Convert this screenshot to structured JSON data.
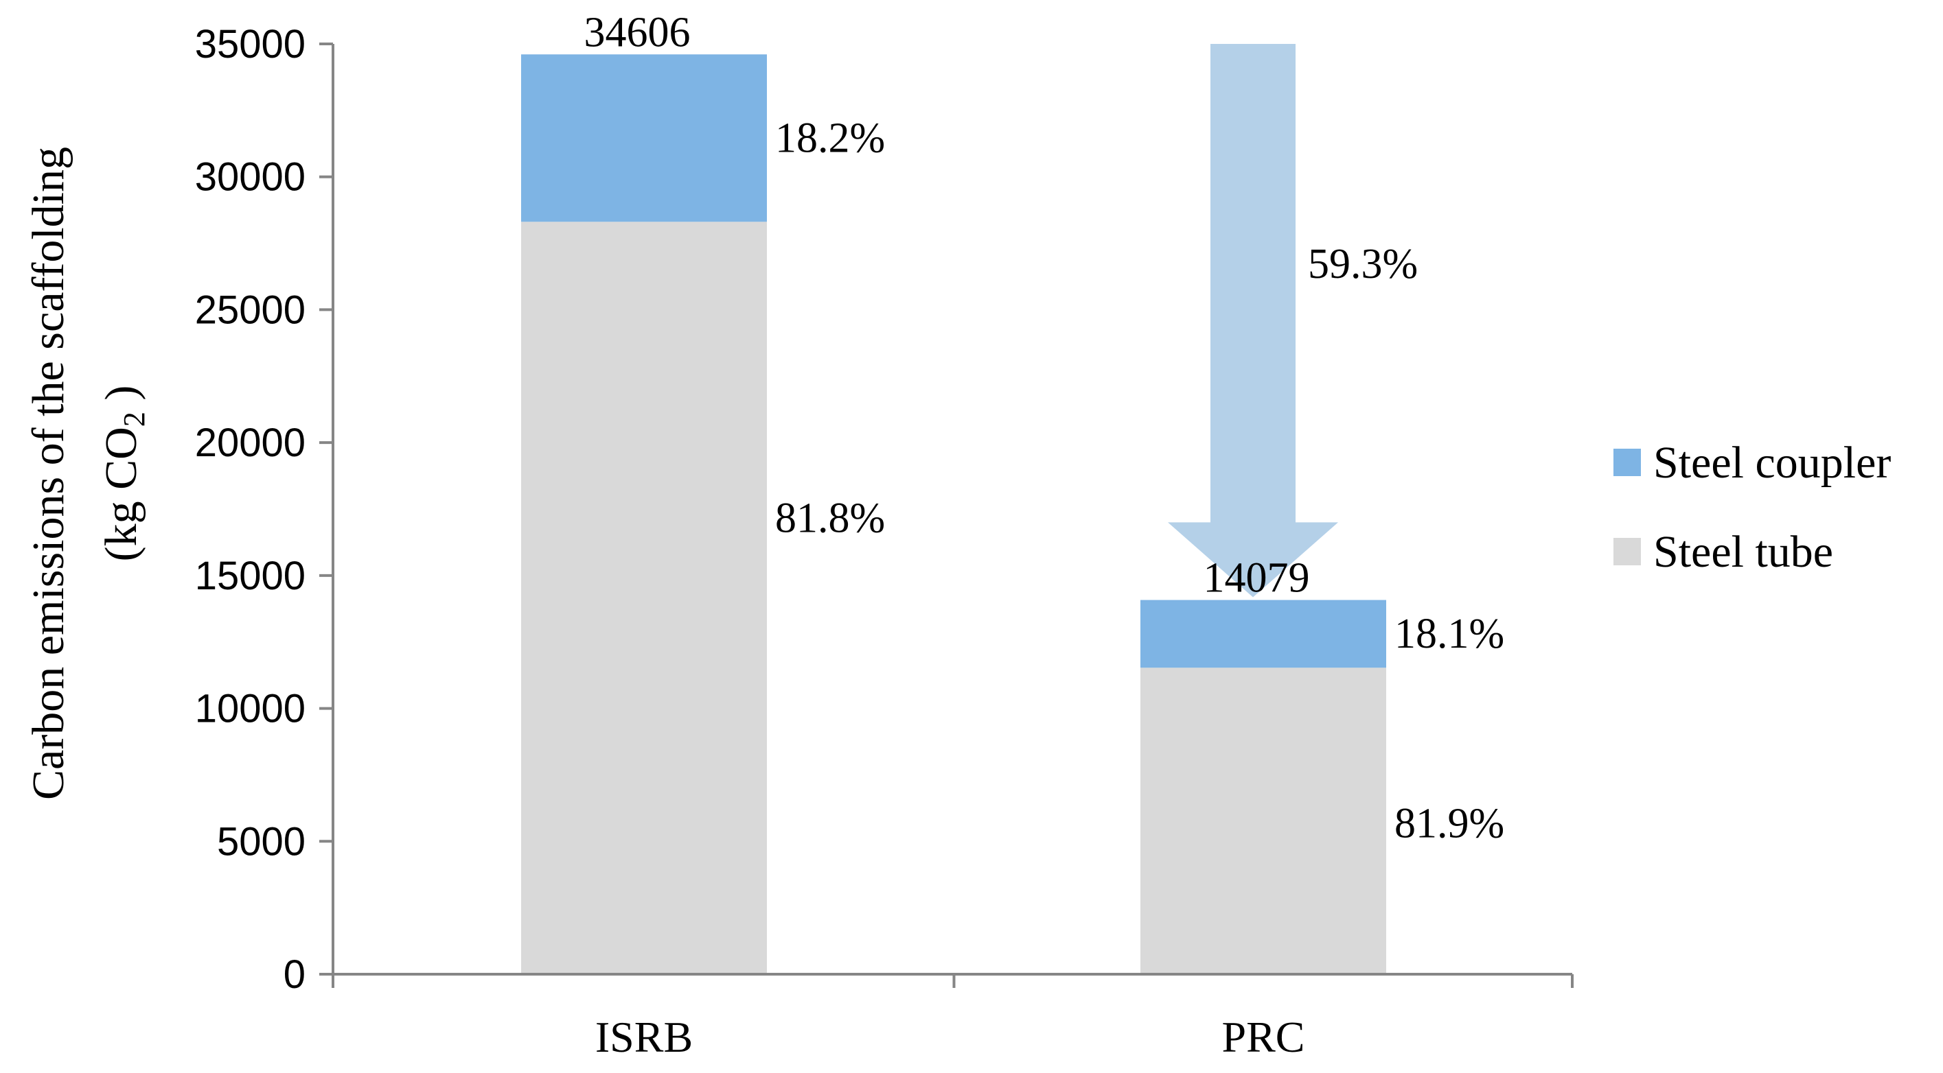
{
  "chart_data": {
    "type": "bar",
    "stacked": true,
    "categories": [
      "ISRB",
      "PRC"
    ],
    "series": [
      {
        "name": "Steel tube",
        "values": [
          28308,
          11531
        ],
        "color": "#d9d9d9"
      },
      {
        "name": "Steel coupler",
        "values": [
          6298,
          2548
        ],
        "color": "#7eb4e4"
      }
    ],
    "totals": [
      {
        "category": "ISRB",
        "label": "34606"
      },
      {
        "category": "PRC",
        "label": "14079"
      }
    ],
    "segment_labels": [
      {
        "category": "ISRB",
        "series": "Steel coupler",
        "label": "18.2%"
      },
      {
        "category": "ISRB",
        "series": "Steel tube",
        "label": "81.8%"
      },
      {
        "category": "PRC",
        "series": "Steel coupler",
        "label": "18.1%"
      },
      {
        "category": "PRC",
        "series": "Steel tube",
        "label": "81.9%"
      }
    ],
    "reduction": {
      "label": "59.3%",
      "from": 35000,
      "to": 14079,
      "color": "#b4d0e8"
    },
    "yticks": [
      "0",
      "5000",
      "10000",
      "15000",
      "20000",
      "25000",
      "30000",
      "35000"
    ],
    "ylim": [
      0,
      35000
    ],
    "ylabel_line1": "Carbon emissions of  the scaffolding",
    "ylabel_line2_pre": "(kg CO",
    "ylabel_line2_sub": "2",
    "ylabel_line2_post": " )",
    "xlabel": "",
    "title": "",
    "legend_position": "right",
    "legend": [
      {
        "name": "Steel coupler",
        "color": "#7eb4e4"
      },
      {
        "name": "Steel tube",
        "color": "#d9d9d9"
      }
    ],
    "grid": false
  }
}
